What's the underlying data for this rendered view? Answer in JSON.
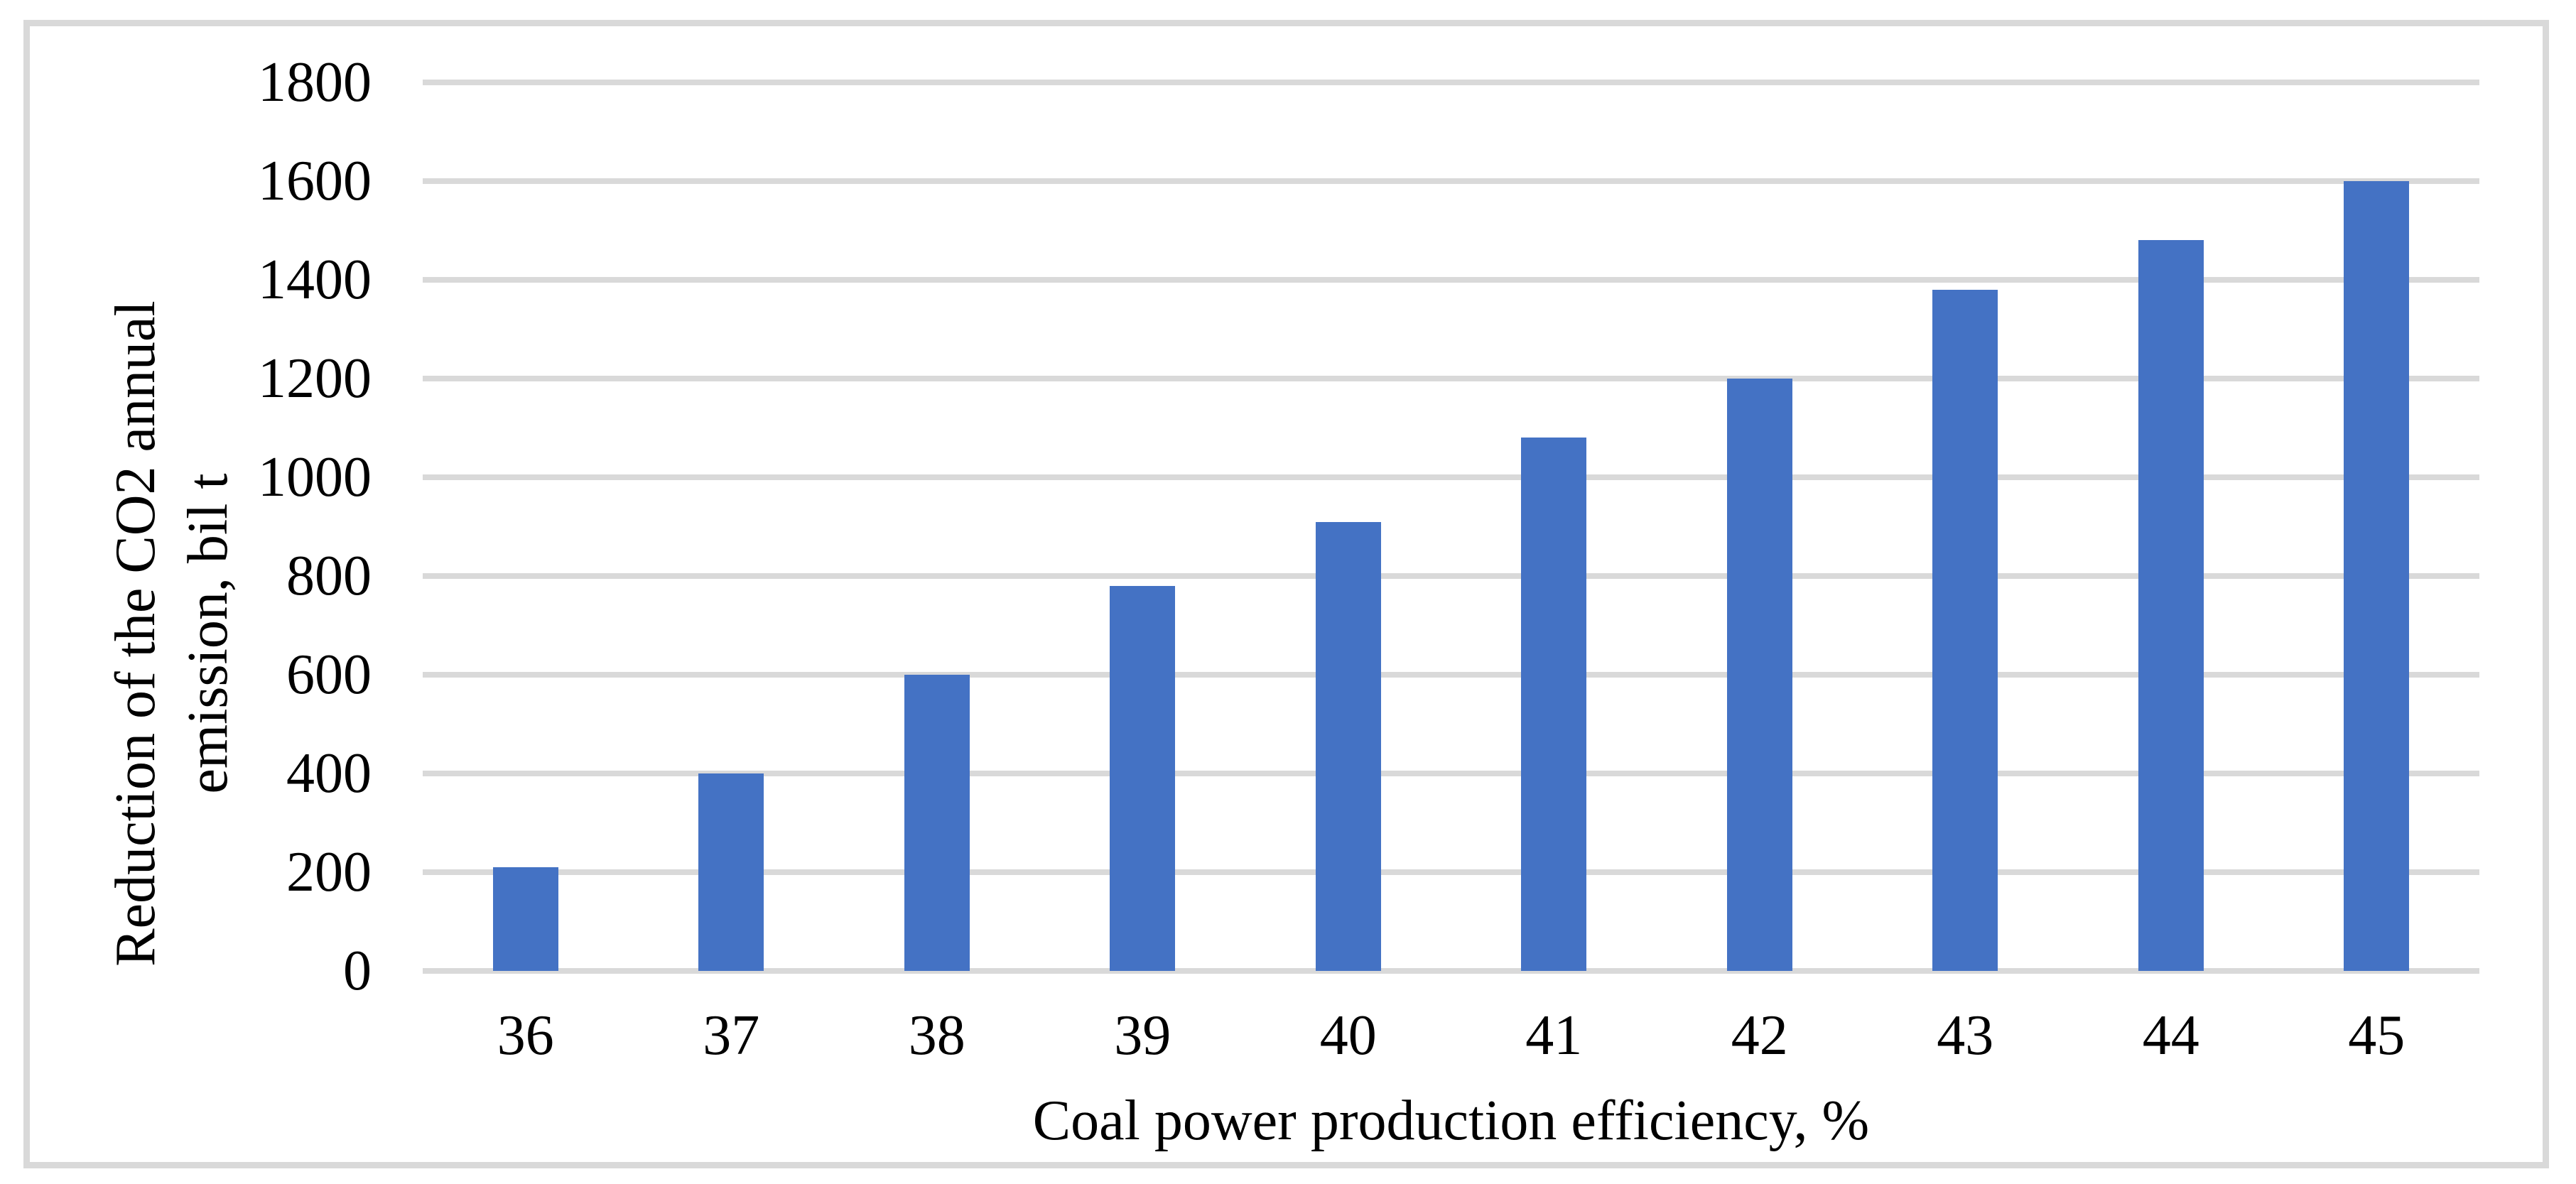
{
  "chart_data": {
    "type": "bar",
    "title": "",
    "categories": [
      "36",
      "37",
      "38",
      "39",
      "40",
      "41",
      "42",
      "43",
      "44",
      "45"
    ],
    "values": [
      210,
      400,
      600,
      780,
      910,
      1080,
      1200,
      1380,
      1480,
      1600
    ],
    "xlabel": "Coal power production efficiency, %",
    "ylabel": "Reduction of the CO2 annual emission, bil t",
    "ylabel_lines": [
      "Reduction of the CO2 annual",
      "emission, bil t"
    ],
    "y_ticks": [
      0,
      200,
      400,
      600,
      800,
      1000,
      1200,
      1400,
      1600,
      1800
    ],
    "ylim": [
      0,
      1800
    ],
    "grid": "horizontal-only",
    "legend": "none",
    "bar_color": "#4472C4",
    "gridline_color": "#D9D9D9",
    "frame_color": "#D9D9D9",
    "text_color": "#000000"
  }
}
